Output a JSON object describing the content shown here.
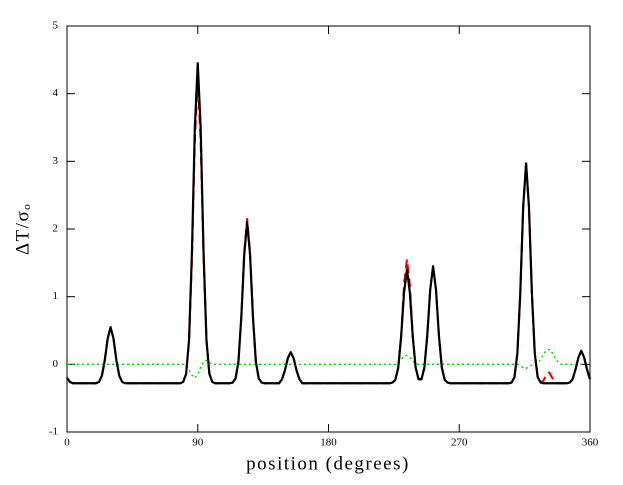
{
  "chart_data": {
    "type": "line",
    "xlabel": "position (degrees)",
    "ylabel": "ΔT/σₒ",
    "xlim": [
      0,
      360
    ],
    "xticks": [
      0,
      90,
      180,
      270,
      360
    ],
    "ylim": [
      -1,
      5
    ],
    "yticks": [
      -1,
      0,
      1,
      2,
      3,
      4,
      5
    ],
    "x": [
      0,
      2,
      4,
      6,
      8,
      10,
      12,
      14,
      16,
      18,
      20,
      22,
      24,
      26,
      28,
      30,
      32,
      34,
      36,
      38,
      40,
      42,
      44,
      46,
      48,
      50,
      52,
      54,
      56,
      58,
      60,
      62,
      64,
      66,
      68,
      70,
      72,
      74,
      76,
      78,
      80,
      82,
      84,
      86,
      88,
      90,
      92,
      94,
      96,
      98,
      100,
      102,
      104,
      106,
      108,
      110,
      112,
      114,
      116,
      118,
      120,
      122,
      124,
      126,
      128,
      130,
      132,
      134,
      136,
      138,
      140,
      142,
      144,
      146,
      148,
      150,
      152,
      154,
      156,
      158,
      160,
      162,
      164,
      166,
      168,
      170,
      172,
      174,
      176,
      178,
      180,
      182,
      184,
      186,
      188,
      190,
      192,
      194,
      196,
      198,
      200,
      202,
      204,
      206,
      208,
      210,
      212,
      214,
      216,
      218,
      220,
      222,
      224,
      226,
      228,
      230,
      232,
      234,
      236,
      238,
      240,
      242,
      244,
      246,
      248,
      250,
      252,
      254,
      256,
      258,
      260,
      262,
      264,
      266,
      268,
      270,
      272,
      274,
      276,
      278,
      280,
      282,
      284,
      286,
      288,
      290,
      292,
      294,
      296,
      298,
      300,
      302,
      304,
      306,
      308,
      310,
      312,
      314,
      316,
      318,
      320,
      322,
      324,
      326,
      328,
      330,
      332,
      334,
      336,
      338,
      340,
      342,
      344,
      346,
      348,
      350,
      352,
      354,
      356,
      358,
      360
    ],
    "series": [
      {
        "color": "#000000",
        "style": "solid",
        "values": [
          -0.2,
          -0.26,
          -0.28,
          -0.28,
          -0.28,
          -0.28,
          -0.28,
          -0.28,
          -0.28,
          -0.28,
          -0.28,
          -0.26,
          -0.17,
          0.06,
          0.38,
          0.55,
          0.38,
          0.06,
          -0.17,
          -0.26,
          -0.28,
          -0.28,
          -0.28,
          -0.28,
          -0.28,
          -0.28,
          -0.28,
          -0.28,
          -0.28,
          -0.28,
          -0.28,
          -0.28,
          -0.28,
          -0.28,
          -0.28,
          -0.28,
          -0.28,
          -0.28,
          -0.28,
          -0.28,
          -0.26,
          -0.14,
          0.36,
          1.66,
          3.5,
          4.45,
          3.5,
          1.66,
          0.36,
          -0.14,
          -0.26,
          -0.28,
          -0.28,
          -0.28,
          -0.28,
          -0.28,
          -0.28,
          -0.27,
          -0.21,
          0.04,
          0.7,
          1.62,
          2.1,
          1.62,
          0.7,
          0.04,
          -0.21,
          -0.27,
          -0.28,
          -0.28,
          -0.28,
          -0.28,
          -0.28,
          -0.28,
          -0.22,
          -0.09,
          0.09,
          0.18,
          0.09,
          -0.09,
          -0.22,
          -0.28,
          -0.28,
          -0.28,
          -0.28,
          -0.28,
          -0.28,
          -0.28,
          -0.28,
          -0.28,
          -0.28,
          -0.28,
          -0.28,
          -0.28,
          -0.28,
          -0.28,
          -0.28,
          -0.28,
          -0.28,
          -0.28,
          -0.28,
          -0.28,
          -0.28,
          -0.28,
          -0.28,
          -0.28,
          -0.28,
          -0.28,
          -0.28,
          -0.28,
          -0.28,
          -0.28,
          -0.27,
          -0.23,
          -0.05,
          0.41,
          1.06,
          1.4,
          1.06,
          0.41,
          -0.05,
          -0.22,
          -0.22,
          -0.05,
          0.43,
          1.1,
          1.45,
          1.1,
          0.43,
          -0.05,
          -0.23,
          -0.27,
          -0.28,
          -0.28,
          -0.28,
          -0.28,
          -0.28,
          -0.28,
          -0.28,
          -0.28,
          -0.28,
          -0.28,
          -0.28,
          -0.28,
          -0.28,
          -0.28,
          -0.28,
          -0.28,
          -0.28,
          -0.28,
          -0.28,
          -0.28,
          -0.28,
          -0.27,
          -0.19,
          0.16,
          1.05,
          2.32,
          2.97,
          2.32,
          1.05,
          0.16,
          -0.19,
          -0.27,
          -0.28,
          -0.28,
          -0.28,
          -0.28,
          -0.28,
          -0.28,
          -0.28,
          -0.28,
          -0.28,
          -0.27,
          -0.22,
          -0.08,
          0.1,
          0.2,
          0.1,
          -0.08,
          -0.22
        ]
      },
      {
        "color": "#e00000",
        "style": "dashed",
        "values": [
          -0.2,
          -0.26,
          -0.28,
          -0.28,
          -0.28,
          -0.28,
          -0.28,
          -0.28,
          -0.28,
          -0.28,
          -0.28,
          -0.26,
          -0.17,
          0.06,
          0.38,
          0.55,
          0.38,
          0.06,
          -0.17,
          -0.26,
          -0.28,
          -0.28,
          -0.28,
          -0.28,
          -0.28,
          -0.28,
          -0.28,
          -0.28,
          -0.28,
          -0.28,
          -0.28,
          -0.28,
          -0.28,
          -0.28,
          -0.28,
          -0.28,
          -0.28,
          -0.28,
          -0.28,
          -0.28,
          -0.26,
          -0.14,
          0.34,
          1.56,
          3.3,
          4.2,
          3.3,
          1.56,
          0.34,
          -0.14,
          -0.26,
          -0.28,
          -0.28,
          -0.28,
          -0.28,
          -0.28,
          -0.28,
          -0.27,
          -0.21,
          0.04,
          0.7,
          1.66,
          2.15,
          1.66,
          0.7,
          0.04,
          -0.21,
          -0.27,
          -0.28,
          -0.28,
          -0.28,
          -0.28,
          -0.28,
          -0.28,
          -0.22,
          -0.09,
          0.09,
          0.18,
          0.09,
          -0.09,
          -0.22,
          -0.28,
          -0.28,
          -0.28,
          -0.28,
          -0.28,
          -0.28,
          -0.28,
          -0.28,
          -0.28,
          -0.28,
          -0.28,
          -0.28,
          -0.28,
          -0.28,
          -0.28,
          -0.28,
          -0.28,
          -0.28,
          -0.28,
          -0.28,
          -0.28,
          -0.28,
          -0.28,
          -0.28,
          -0.28,
          -0.28,
          -0.28,
          -0.28,
          -0.28,
          -0.28,
          -0.28,
          -0.27,
          -0.23,
          -0.05,
          0.41,
          1.18,
          1.55,
          1.18,
          0.41,
          -0.05,
          -0.22,
          -0.22,
          -0.05,
          0.43,
          1.1,
          1.45,
          1.1,
          0.43,
          -0.05,
          -0.23,
          -0.27,
          -0.28,
          -0.28,
          -0.28,
          -0.28,
          -0.28,
          -0.28,
          -0.28,
          -0.28,
          -0.28,
          -0.28,
          -0.28,
          -0.28,
          -0.28,
          -0.28,
          -0.28,
          -0.28,
          -0.28,
          -0.28,
          -0.28,
          -0.28,
          -0.28,
          -0.27,
          -0.19,
          0.16,
          1.05,
          2.32,
          2.97,
          2.32,
          1.05,
          0.16,
          -0.19,
          -0.27,
          -0.24,
          -0.15,
          -0.12,
          -0.2,
          -0.27,
          -0.28,
          -0.28,
          -0.28,
          -0.28,
          -0.27,
          -0.22,
          -0.08,
          0.1,
          0.2,
          0.1,
          -0.08,
          -0.22
        ]
      },
      {
        "color": "#00cc00",
        "style": "dotted",
        "values": [
          0,
          0,
          0,
          0,
          0,
          0,
          0,
          0,
          0,
          0,
          0,
          0,
          0,
          0,
          0,
          0,
          0,
          0,
          0,
          0,
          0,
          0,
          0,
          0,
          0,
          0,
          0,
          0,
          0,
          0,
          0,
          0,
          0,
          0,
          0,
          0,
          0,
          0,
          0,
          0,
          0,
          -0.02,
          -0.08,
          -0.16,
          -0.2,
          -0.15,
          -0.04,
          0.04,
          0.06,
          0.03,
          0,
          0,
          0,
          0,
          0,
          0,
          0,
          0,
          0,
          0,
          0,
          0,
          0,
          0,
          0,
          0,
          0,
          0,
          0,
          0,
          0,
          0,
          0,
          0,
          0,
          0,
          0,
          0,
          0,
          0,
          0,
          0,
          0,
          0,
          0,
          0,
          0,
          0,
          0,
          0,
          0,
          0,
          0,
          0,
          0,
          0,
          0,
          0,
          0,
          0,
          0,
          0,
          0,
          0,
          0,
          0,
          0,
          0,
          0,
          0,
          0,
          0,
          0,
          0,
          0.02,
          0.07,
          0.12,
          0.13,
          0.1,
          0.05,
          0.01,
          0,
          0,
          0,
          0,
          0,
          0,
          0,
          0,
          0,
          0,
          0,
          0,
          0,
          0,
          0,
          0,
          0,
          0,
          0,
          0,
          0,
          0,
          0,
          0,
          0,
          0,
          0,
          0,
          0,
          0,
          0,
          0,
          0,
          0,
          0,
          -0.02,
          -0.05,
          -0.06,
          -0.04,
          -0.01,
          0,
          0.02,
          0.07,
          0.15,
          0.21,
          0.22,
          0.17,
          0.09,
          0.03,
          0,
          0,
          0,
          0,
          0,
          0,
          0,
          0,
          0,
          0,
          0
        ]
      }
    ]
  }
}
